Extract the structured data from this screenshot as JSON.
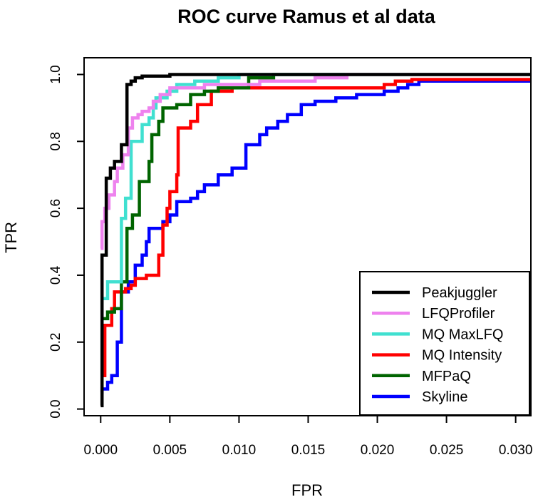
{
  "chart_data": {
    "type": "line",
    "title": "ROC curve Ramus et al data",
    "xlabel": "FPR",
    "ylabel": "TPR",
    "xlim": [
      -0.0012,
      0.0311
    ],
    "ylim": [
      -0.02,
      1.05
    ],
    "xticks": [
      {
        "value": 0.0,
        "label": "0.000"
      },
      {
        "value": 0.005,
        "label": "0.005"
      },
      {
        "value": 0.01,
        "label": "0.010"
      },
      {
        "value": 0.015,
        "label": "0.015"
      },
      {
        "value": 0.02,
        "label": "0.020"
      },
      {
        "value": 0.025,
        "label": "0.025"
      },
      {
        "value": 0.03,
        "label": "0.030"
      }
    ],
    "yticks": [
      {
        "value": 0.0,
        "label": "0.0"
      },
      {
        "value": 0.2,
        "label": "0.2"
      },
      {
        "value": 0.4,
        "label": "0.4"
      },
      {
        "value": 0.6,
        "label": "0.6"
      },
      {
        "value": 0.8,
        "label": "0.8"
      },
      {
        "value": 1.0,
        "label": "1.0"
      }
    ],
    "grid": false,
    "legend_position": "bottom-right",
    "series": [
      {
        "name": "Skyline",
        "color": "#0000ff",
        "points": [
          [
            0.0,
            0.05
          ],
          [
            0.0001,
            0.05
          ],
          [
            0.0001,
            0.06
          ],
          [
            0.0005,
            0.06
          ],
          [
            0.0005,
            0.08
          ],
          [
            0.0008,
            0.08
          ],
          [
            0.0008,
            0.1
          ],
          [
            0.0012,
            0.1
          ],
          [
            0.0012,
            0.2
          ],
          [
            0.0015,
            0.2
          ],
          [
            0.0015,
            0.35
          ],
          [
            0.002,
            0.35
          ],
          [
            0.002,
            0.38
          ],
          [
            0.0025,
            0.38
          ],
          [
            0.0025,
            0.43
          ],
          [
            0.003,
            0.43
          ],
          [
            0.003,
            0.46
          ],
          [
            0.0033,
            0.46
          ],
          [
            0.0033,
            0.5
          ],
          [
            0.0035,
            0.5
          ],
          [
            0.0035,
            0.54
          ],
          [
            0.0045,
            0.54
          ],
          [
            0.0045,
            0.56
          ],
          [
            0.005,
            0.56
          ],
          [
            0.005,
            0.58
          ],
          [
            0.0055,
            0.58
          ],
          [
            0.0055,
            0.62
          ],
          [
            0.0065,
            0.62
          ],
          [
            0.0065,
            0.63
          ],
          [
            0.007,
            0.63
          ],
          [
            0.007,
            0.65
          ],
          [
            0.0075,
            0.65
          ],
          [
            0.0075,
            0.67
          ],
          [
            0.0085,
            0.67
          ],
          [
            0.0085,
            0.7
          ],
          [
            0.0095,
            0.7
          ],
          [
            0.0095,
            0.72
          ],
          [
            0.0105,
            0.72
          ],
          [
            0.0105,
            0.79
          ],
          [
            0.0115,
            0.79
          ],
          [
            0.0115,
            0.82
          ],
          [
            0.012,
            0.82
          ],
          [
            0.012,
            0.84
          ],
          [
            0.0128,
            0.84
          ],
          [
            0.0128,
            0.86
          ],
          [
            0.0135,
            0.86
          ],
          [
            0.0135,
            0.88
          ],
          [
            0.0145,
            0.88
          ],
          [
            0.0145,
            0.91
          ],
          [
            0.0155,
            0.91
          ],
          [
            0.0155,
            0.92
          ],
          [
            0.017,
            0.92
          ],
          [
            0.017,
            0.93
          ],
          [
            0.0185,
            0.93
          ],
          [
            0.0185,
            0.94
          ],
          [
            0.0205,
            0.94
          ],
          [
            0.0205,
            0.95
          ],
          [
            0.0215,
            0.95
          ],
          [
            0.0215,
            0.96
          ],
          [
            0.0222,
            0.96
          ],
          [
            0.0222,
            0.97
          ],
          [
            0.023,
            0.97
          ],
          [
            0.023,
            0.98
          ],
          [
            0.0315,
            0.98
          ]
        ]
      },
      {
        "name": "MQ Intensity",
        "color": "#ff0000",
        "points": [
          [
            0.0,
            0.1
          ],
          [
            0.0003,
            0.1
          ],
          [
            0.0003,
            0.25
          ],
          [
            0.0008,
            0.25
          ],
          [
            0.0008,
            0.3
          ],
          [
            0.001,
            0.3
          ],
          [
            0.001,
            0.35
          ],
          [
            0.0018,
            0.35
          ],
          [
            0.0018,
            0.36
          ],
          [
            0.0022,
            0.36
          ],
          [
            0.0022,
            0.37
          ],
          [
            0.0025,
            0.37
          ],
          [
            0.0025,
            0.39
          ],
          [
            0.0033,
            0.39
          ],
          [
            0.0033,
            0.4
          ],
          [
            0.0042,
            0.4
          ],
          [
            0.0042,
            0.46
          ],
          [
            0.0045,
            0.46
          ],
          [
            0.0045,
            0.55
          ],
          [
            0.0048,
            0.55
          ],
          [
            0.0048,
            0.6
          ],
          [
            0.005,
            0.6
          ],
          [
            0.005,
            0.65
          ],
          [
            0.0055,
            0.65
          ],
          [
            0.0055,
            0.7
          ],
          [
            0.0056,
            0.7
          ],
          [
            0.0056,
            0.84
          ],
          [
            0.0065,
            0.84
          ],
          [
            0.0065,
            0.86
          ],
          [
            0.007,
            0.86
          ],
          [
            0.007,
            0.91
          ],
          [
            0.008,
            0.91
          ],
          [
            0.008,
            0.95
          ],
          [
            0.0095,
            0.95
          ],
          [
            0.0095,
            0.96
          ],
          [
            0.0205,
            0.96
          ],
          [
            0.0205,
            0.97
          ],
          [
            0.0213,
            0.97
          ],
          [
            0.0213,
            0.98
          ],
          [
            0.0225,
            0.98
          ],
          [
            0.0225,
            0.985
          ],
          [
            0.0315,
            0.985
          ]
        ]
      },
      {
        "name": "MFPaQ",
        "color": "#006400",
        "points": [
          [
            0.0,
            0.27
          ],
          [
            0.0005,
            0.27
          ],
          [
            0.0005,
            0.29
          ],
          [
            0.001,
            0.29
          ],
          [
            0.001,
            0.3
          ],
          [
            0.0015,
            0.3
          ],
          [
            0.0015,
            0.38
          ],
          [
            0.0019,
            0.38
          ],
          [
            0.0019,
            0.54
          ],
          [
            0.0023,
            0.54
          ],
          [
            0.0023,
            0.58
          ],
          [
            0.0028,
            0.58
          ],
          [
            0.0028,
            0.68
          ],
          [
            0.0035,
            0.68
          ],
          [
            0.0035,
            0.74
          ],
          [
            0.0037,
            0.74
          ],
          [
            0.0037,
            0.82
          ],
          [
            0.0042,
            0.82
          ],
          [
            0.0042,
            0.86
          ],
          [
            0.0045,
            0.86
          ],
          [
            0.0045,
            0.9
          ],
          [
            0.0055,
            0.9
          ],
          [
            0.0055,
            0.91
          ],
          [
            0.0065,
            0.91
          ],
          [
            0.0065,
            0.94
          ],
          [
            0.0075,
            0.94
          ],
          [
            0.0075,
            0.95
          ],
          [
            0.0085,
            0.95
          ],
          [
            0.0085,
            0.96
          ],
          [
            0.0107,
            0.96
          ],
          [
            0.0107,
            0.99
          ],
          [
            0.0125,
            0.99
          ],
          [
            0.0125,
            1.0
          ],
          [
            0.0315,
            1.0
          ]
        ]
      },
      {
        "name": "MQ MaxLFQ",
        "color": "#40e0d0",
        "points": [
          [
            0.0,
            0.33
          ],
          [
            0.0005,
            0.33
          ],
          [
            0.0005,
            0.38
          ],
          [
            0.0015,
            0.38
          ],
          [
            0.0015,
            0.57
          ],
          [
            0.0018,
            0.57
          ],
          [
            0.0018,
            0.63
          ],
          [
            0.0022,
            0.63
          ],
          [
            0.0022,
            0.8
          ],
          [
            0.003,
            0.8
          ],
          [
            0.003,
            0.85
          ],
          [
            0.0035,
            0.85
          ],
          [
            0.0035,
            0.87
          ],
          [
            0.0038,
            0.87
          ],
          [
            0.0038,
            0.9
          ],
          [
            0.004,
            0.9
          ],
          [
            0.004,
            0.93
          ],
          [
            0.0048,
            0.93
          ],
          [
            0.0048,
            0.95
          ],
          [
            0.0055,
            0.95
          ],
          [
            0.0055,
            0.97
          ],
          [
            0.0068,
            0.97
          ],
          [
            0.0068,
            0.98
          ],
          [
            0.0085,
            0.98
          ],
          [
            0.0085,
            0.99
          ],
          [
            0.01,
            0.99
          ],
          [
            0.01,
            1.0
          ],
          [
            0.0315,
            1.0
          ]
        ]
      },
      {
        "name": "LFQProfiler",
        "color": "#ee82ee",
        "points": [
          [
            0.0,
            0.48
          ],
          [
            0.0001,
            0.48
          ],
          [
            0.0001,
            0.56
          ],
          [
            0.0003,
            0.56
          ],
          [
            0.0003,
            0.6
          ],
          [
            0.0006,
            0.6
          ],
          [
            0.0006,
            0.64
          ],
          [
            0.001,
            0.64
          ],
          [
            0.001,
            0.68
          ],
          [
            0.0012,
            0.68
          ],
          [
            0.0012,
            0.72
          ],
          [
            0.0016,
            0.72
          ],
          [
            0.0016,
            0.76
          ],
          [
            0.002,
            0.76
          ],
          [
            0.002,
            0.84
          ],
          [
            0.0023,
            0.84
          ],
          [
            0.0023,
            0.87
          ],
          [
            0.0027,
            0.87
          ],
          [
            0.0027,
            0.88
          ],
          [
            0.003,
            0.88
          ],
          [
            0.003,
            0.89
          ],
          [
            0.0035,
            0.89
          ],
          [
            0.0035,
            0.9
          ],
          [
            0.0038,
            0.9
          ],
          [
            0.0038,
            0.92
          ],
          [
            0.0043,
            0.92
          ],
          [
            0.0043,
            0.94
          ],
          [
            0.005,
            0.94
          ],
          [
            0.005,
            0.96
          ],
          [
            0.0075,
            0.96
          ],
          [
            0.0075,
            0.97
          ],
          [
            0.0115,
            0.97
          ],
          [
            0.0115,
            0.98
          ],
          [
            0.0155,
            0.98
          ],
          [
            0.0155,
            0.99
          ],
          [
            0.0178,
            0.99
          ],
          [
            0.0178,
            1.0
          ],
          [
            0.0315,
            1.0
          ]
        ]
      },
      {
        "name": "Peakjuggler",
        "color": "#000000",
        "points": [
          [
            0.0,
            0.01
          ],
          [
            0.0001,
            0.01
          ],
          [
            0.0001,
            0.46
          ],
          [
            0.0004,
            0.46
          ],
          [
            0.0004,
            0.69
          ],
          [
            0.0007,
            0.69
          ],
          [
            0.0007,
            0.72
          ],
          [
            0.001,
            0.72
          ],
          [
            0.001,
            0.74
          ],
          [
            0.0015,
            0.74
          ],
          [
            0.0015,
            0.79
          ],
          [
            0.0019,
            0.79
          ],
          [
            0.0019,
            0.97
          ],
          [
            0.0022,
            0.97
          ],
          [
            0.0022,
            0.98
          ],
          [
            0.0025,
            0.98
          ],
          [
            0.0025,
            0.99
          ],
          [
            0.003,
            0.99
          ],
          [
            0.003,
            0.995
          ],
          [
            0.005,
            0.995
          ],
          [
            0.005,
            1.0
          ],
          [
            0.0315,
            1.0
          ]
        ]
      }
    ],
    "legend": [
      "Peakjuggler",
      "LFQProfiler",
      "MQ MaxLFQ",
      "MQ Intensity",
      "MFPaQ",
      "Skyline"
    ]
  }
}
